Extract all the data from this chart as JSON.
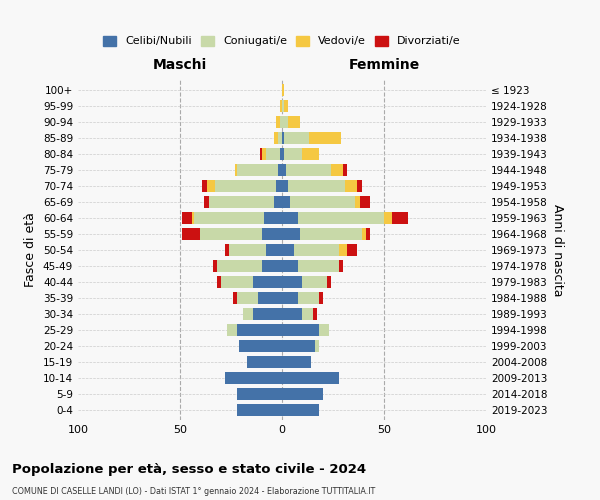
{
  "age_groups": [
    "0-4",
    "5-9",
    "10-14",
    "15-19",
    "20-24",
    "25-29",
    "30-34",
    "35-39",
    "40-44",
    "45-49",
    "50-54",
    "55-59",
    "60-64",
    "65-69",
    "70-74",
    "75-79",
    "80-84",
    "85-89",
    "90-94",
    "95-99",
    "100+"
  ],
  "birth_years": [
    "2019-2023",
    "2014-2018",
    "2009-2013",
    "2004-2008",
    "1999-2003",
    "1994-1998",
    "1989-1993",
    "1984-1988",
    "1979-1983",
    "1974-1978",
    "1969-1973",
    "1964-1968",
    "1959-1963",
    "1954-1958",
    "1949-1953",
    "1944-1948",
    "1939-1943",
    "1934-1938",
    "1929-1933",
    "1924-1928",
    "≤ 1923"
  ],
  "colors": {
    "celibi": "#4472a8",
    "coniugati": "#c8d9a8",
    "vedovi": "#f5c842",
    "divorziati": "#cc1111"
  },
  "maschi": {
    "celibi": [
      22,
      22,
      28,
      17,
      21,
      22,
      14,
      12,
      14,
      10,
      8,
      10,
      9,
      4,
      3,
      2,
      1,
      0,
      0,
      0,
      0
    ],
    "coniugati": [
      0,
      0,
      0,
      0,
      0,
      5,
      5,
      10,
      16,
      22,
      18,
      30,
      34,
      32,
      30,
      20,
      7,
      2,
      1,
      0,
      0
    ],
    "vedovi": [
      0,
      0,
      0,
      0,
      0,
      0,
      0,
      0,
      0,
      0,
      0,
      0,
      1,
      0,
      4,
      1,
      2,
      2,
      2,
      1,
      0
    ],
    "divorziati": [
      0,
      0,
      0,
      0,
      0,
      0,
      0,
      2,
      2,
      2,
      2,
      9,
      5,
      2,
      2,
      0,
      1,
      0,
      0,
      0,
      0
    ]
  },
  "femmine": {
    "celibi": [
      18,
      20,
      28,
      14,
      16,
      18,
      10,
      8,
      10,
      8,
      6,
      9,
      8,
      4,
      3,
      2,
      1,
      1,
      0,
      0,
      0
    ],
    "coniugati": [
      0,
      0,
      0,
      0,
      2,
      5,
      5,
      10,
      12,
      20,
      22,
      30,
      42,
      32,
      28,
      22,
      9,
      12,
      3,
      1,
      0
    ],
    "vedovi": [
      0,
      0,
      0,
      0,
      0,
      0,
      0,
      0,
      0,
      0,
      4,
      2,
      4,
      2,
      6,
      6,
      8,
      16,
      6,
      2,
      1
    ],
    "divorziati": [
      0,
      0,
      0,
      0,
      0,
      0,
      2,
      2,
      2,
      2,
      5,
      2,
      8,
      5,
      2,
      2,
      0,
      0,
      0,
      0,
      0
    ]
  },
  "xlim": 100,
  "title": "Popolazione per età, sesso e stato civile - 2024",
  "subtitle": "COMUNE DI CASELLE LANDI (LO) - Dati ISTAT 1° gennaio 2024 - Elaborazione TUTTITALIA.IT",
  "xlabel_left": "Maschi",
  "xlabel_right": "Femmine",
  "ylabel_left": "Fasce di età",
  "ylabel_right": "Anni di nascita",
  "legend_labels": [
    "Celibi/Nubili",
    "Coniugati/e",
    "Vedovi/e",
    "Divorziati/e"
  ],
  "bg_color": "#f8f8f8",
  "grid_color": "#cccccc"
}
